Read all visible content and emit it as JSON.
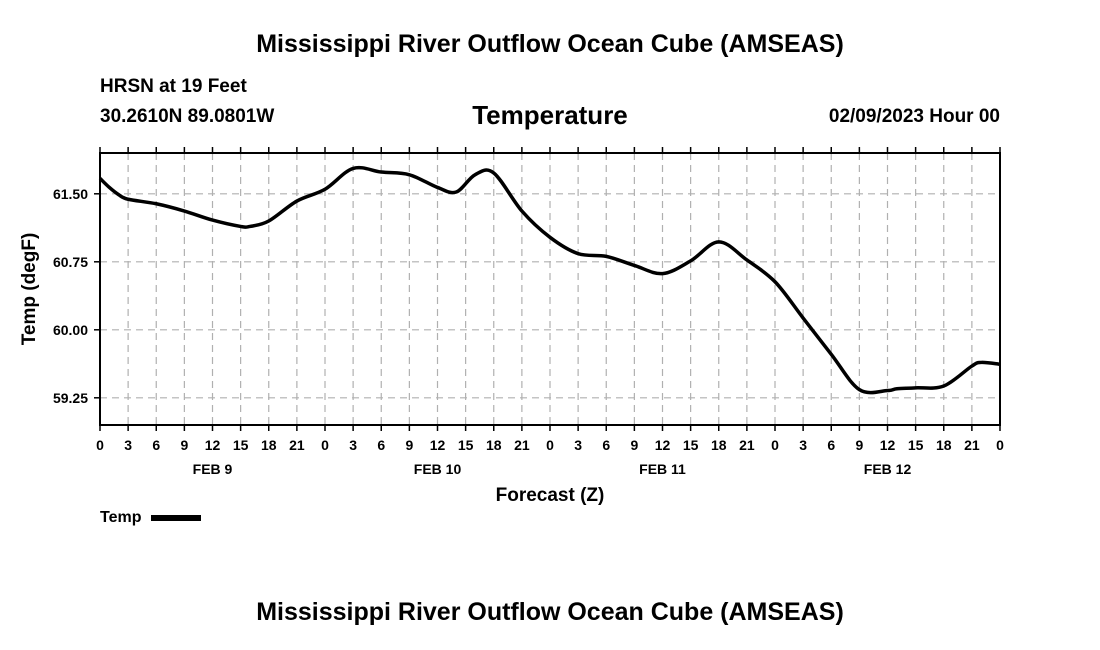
{
  "header": {
    "title": "Mississippi River Outflow Ocean Cube (AMSEAS)",
    "station": "HRSN at 19 Feet",
    "coords": "30.2610N  89.0801W",
    "variable": "Temperature",
    "datetime": "02/09/2023 Hour 00"
  },
  "footer": {
    "title": "Mississippi River Outflow Ocean Cube (AMSEAS)"
  },
  "legend": {
    "label": "Temp"
  },
  "colors": {
    "line": "#000000",
    "grid": "#b0b0b0",
    "frame": "#000000"
  },
  "chart_data": {
    "type": "line",
    "title": "Temperature",
    "xlabel": "Forecast (Z)",
    "ylabel": "Temp (degF)",
    "xlim": [
      0,
      96
    ],
    "ylim": [
      58.95,
      61.95
    ],
    "yticks": [
      "61.50",
      "60.75",
      "60.00",
      "59.25"
    ],
    "ytick_values": [
      61.5,
      60.75,
      60.0,
      59.25
    ],
    "xtick_labels": [
      "0",
      "3",
      "6",
      "9",
      "12",
      "15",
      "18",
      "21",
      "0",
      "3",
      "6",
      "9",
      "12",
      "15",
      "18",
      "21",
      "0",
      "3",
      "6",
      "9",
      "12",
      "15",
      "18",
      "21",
      "0",
      "3",
      "6",
      "9",
      "12",
      "15",
      "18",
      "21",
      "0"
    ],
    "day_labels": [
      {
        "label": "FEB 9",
        "hour": 12
      },
      {
        "label": "FEB 10",
        "hour": 36
      },
      {
        "label": "FEB 11",
        "hour": 60
      },
      {
        "label": "FEB 12",
        "hour": 84
      }
    ],
    "grid": true,
    "series": [
      {
        "name": "Temp",
        "x": [
          0,
          1,
          2,
          3,
          6,
          9,
          12,
          15,
          16,
          18,
          21,
          24,
          27,
          30,
          33,
          36,
          38,
          40,
          42,
          45,
          48,
          51,
          54,
          57,
          60,
          63,
          66,
          69,
          72,
          75,
          78,
          81,
          84,
          85,
          87,
          90,
          93,
          94,
          96
        ],
        "y": [
          61.67,
          61.57,
          61.49,
          61.44,
          61.39,
          61.31,
          61.21,
          61.14,
          61.14,
          61.2,
          61.42,
          61.55,
          61.78,
          61.74,
          61.71,
          61.57,
          61.52,
          61.71,
          61.73,
          61.31,
          61.02,
          60.84,
          60.81,
          60.71,
          60.62,
          60.76,
          60.97,
          60.77,
          60.53,
          60.13,
          59.73,
          59.34,
          59.33,
          59.35,
          59.36,
          59.38,
          59.6,
          59.64,
          59.62
        ]
      }
    ]
  }
}
